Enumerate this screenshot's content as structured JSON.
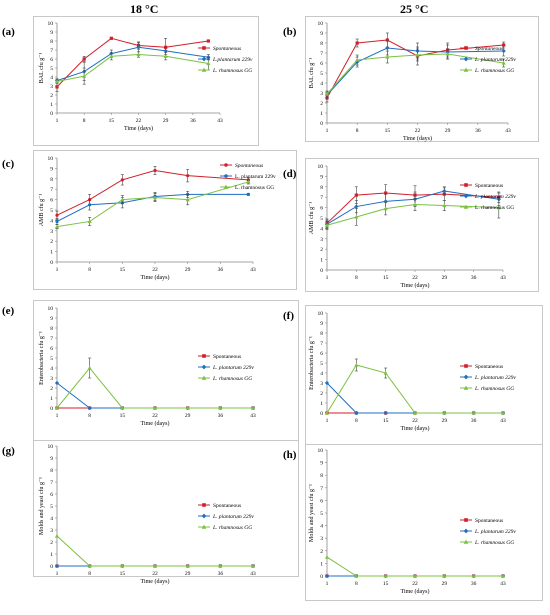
{
  "headers": {
    "left": "18 °C",
    "right": "25 °C"
  },
  "colors": {
    "spontaneous": "#d21f2b",
    "plantarum": "#1f6fbf",
    "rhamnosus": "#7cc142"
  },
  "chart_data": [
    {
      "id": "a",
      "letter": "(a)",
      "type": "line",
      "xlabel": "Time (days)",
      "ylabel": "BAL cfu g⁻¹",
      "x": [
        1,
        8,
        15,
        22,
        29,
        36,
        43
      ],
      "xlim": [
        1,
        43
      ],
      "ylim": [
        0,
        10
      ],
      "yticks": [
        0,
        1,
        2,
        3,
        4,
        5,
        6,
        7,
        8,
        9,
        10
      ],
      "legend": "right",
      "series": [
        {
          "name": "Spontaneous",
          "italic": true,
          "x": [
            1,
            8,
            15,
            22,
            29,
            40
          ],
          "y": [
            2.9,
            6.0,
            8.3,
            7.5,
            7.3,
            8.0
          ],
          "err": [
            0.5,
            0.3,
            0.1,
            0.4,
            1.0,
            0.1
          ],
          "marker": "square",
          "colorKey": "spontaneous"
        },
        {
          "name": "L.plantarum 229v",
          "italic": true,
          "x": [
            1,
            8,
            15,
            22,
            29,
            40
          ],
          "y": [
            3.6,
            4.6,
            6.6,
            7.3,
            6.9,
            6.2
          ],
          "err": [
            0.2,
            1.0,
            0.4,
            0.5,
            0.4,
            0.3
          ],
          "marker": "diamond",
          "colorKey": "plantarum"
        },
        {
          "name": "L. rhamnosus GG",
          "italic": true,
          "x": [
            1,
            8,
            15,
            22,
            29,
            40
          ],
          "y": [
            3.5,
            4.1,
            6.3,
            6.5,
            6.3,
            5.5
          ],
          "err": [
            0.2,
            0.9,
            0.4,
            0.3,
            0.4,
            0.7
          ],
          "marker": "triangle",
          "colorKey": "rhamnosus"
        }
      ]
    },
    {
      "id": "b",
      "letter": "(b)",
      "type": "line",
      "xlabel": "Time (days)",
      "ylabel": "BAL cfu g⁻¹",
      "x": [
        1,
        8,
        15,
        22,
        29,
        36,
        43
      ],
      "xlim": [
        1,
        43
      ],
      "ylim": [
        0,
        10
      ],
      "yticks": [
        0,
        1,
        2,
        3,
        4,
        5,
        6,
        7,
        8,
        9,
        10
      ],
      "legend": "right",
      "series": [
        {
          "name": "Spontaneous",
          "italic": true,
          "x": [
            1,
            8,
            15,
            22,
            29,
            42
          ],
          "y": [
            2.5,
            8.0,
            8.3,
            6.7,
            7.3,
            7.8
          ],
          "err": [
            0.4,
            0.4,
            0.7,
            0.9,
            0.7,
            0.3
          ],
          "marker": "square",
          "colorKey": "spontaneous"
        },
        {
          "name": "L. plantarum 229v",
          "italic": true,
          "x": [
            1,
            8,
            15,
            22,
            29,
            42
          ],
          "y": [
            2.8,
            6.1,
            7.5,
            7.2,
            7.1,
            7.2
          ],
          "err": [
            0.3,
            0.5,
            0.7,
            0.8,
            0.7,
            0.5
          ],
          "marker": "diamond",
          "colorKey": "plantarum"
        },
        {
          "name": "L. rhamnosus GG",
          "italic": true,
          "x": [
            1,
            8,
            15,
            22,
            29,
            42
          ],
          "y": [
            2.9,
            6.3,
            6.6,
            6.8,
            6.9,
            6.0
          ],
          "err": [
            0.3,
            0.5,
            0.6,
            0.6,
            0.5,
            0.4
          ],
          "marker": "triangle",
          "colorKey": "rhamnosus"
        }
      ]
    },
    {
      "id": "c",
      "letter": "(c)",
      "type": "line",
      "xlabel": "Time (days)",
      "ylabel": "AMB cfu g⁻¹",
      "x": [
        1,
        8,
        15,
        22,
        29,
        36,
        43
      ],
      "xlim": [
        1,
        43
      ],
      "ylim": [
        0,
        10
      ],
      "yticks": [
        0,
        1,
        2,
        3,
        4,
        5,
        6,
        7,
        8,
        9,
        10
      ],
      "legend": "right",
      "series": [
        {
          "name": "Spontaneous",
          "italic": true,
          "x": [
            1,
            8,
            15,
            22,
            29,
            42
          ],
          "y": [
            4.5,
            6.0,
            7.9,
            8.8,
            8.3,
            7.9
          ],
          "err": [
            0.4,
            0.5,
            0.5,
            0.4,
            0.6,
            0.2
          ],
          "marker": "circle",
          "colorKey": "spontaneous"
        },
        {
          "name": "L. plantarum 229v",
          "italic": false,
          "x": [
            1,
            8,
            15,
            22,
            29,
            42
          ],
          "y": [
            3.9,
            5.5,
            5.7,
            6.3,
            6.5,
            6.5
          ],
          "err": [
            0.3,
            0.5,
            0.5,
            0.4,
            0.3,
            0.1
          ],
          "marker": "circle",
          "colorKey": "plantarum"
        },
        {
          "name": "L. rhamnosus GG",
          "italic": false,
          "x": [
            1,
            8,
            15,
            22,
            29,
            42
          ],
          "y": [
            3.4,
            3.9,
            6.0,
            6.2,
            6.0,
            7.7
          ],
          "err": [
            0.2,
            0.4,
            0.4,
            0.4,
            0.5,
            0.2
          ],
          "marker": "triangle",
          "colorKey": "rhamnosus"
        }
      ]
    },
    {
      "id": "d",
      "letter": "(d)",
      "type": "line",
      "xlabel": "Time (days)",
      "ylabel": "AMB cfu g⁻¹",
      "x": [
        1,
        8,
        15,
        22,
        29,
        36,
        43
      ],
      "xlim": [
        1,
        43
      ],
      "ylim": [
        0,
        10
      ],
      "yticks": [
        0,
        1,
        2,
        3,
        4,
        5,
        6,
        7,
        8,
        9,
        10
      ],
      "legend": "right",
      "series": [
        {
          "name": "Spontaneous",
          "italic": false,
          "x": [
            1,
            8,
            15,
            22,
            29,
            42
          ],
          "y": [
            4.5,
            7.2,
            7.4,
            7.2,
            7.3,
            7.0
          ],
          "err": [
            0.4,
            0.8,
            0.8,
            0.9,
            0.6,
            0.5
          ],
          "marker": "square",
          "colorKey": "spontaneous"
        },
        {
          "name": "L. plantarum 229v",
          "italic": true,
          "x": [
            1,
            8,
            15,
            22,
            29,
            42
          ],
          "y": [
            4.4,
            6.1,
            6.6,
            6.8,
            7.6,
            6.8
          ],
          "err": [
            0.4,
            0.6,
            0.7,
            0.7,
            0.4,
            0.6
          ],
          "marker": "diamond",
          "colorKey": "plantarum"
        },
        {
          "name": "L. rhamnosus GG",
          "italic": false,
          "x": [
            1,
            8,
            15,
            22,
            29,
            42
          ],
          "y": [
            4.3,
            5.1,
            5.9,
            6.3,
            6.2,
            6.0
          ],
          "err": [
            0.4,
            0.8,
            0.6,
            0.6,
            0.5,
            1.0
          ],
          "marker": "triangle",
          "colorKey": "rhamnosus"
        }
      ]
    },
    {
      "id": "e",
      "letter": "(e)",
      "type": "line",
      "xlabel": "Time (days)",
      "ylabel": "Enterobacteria cfu g⁻¹",
      "x": [
        1,
        8,
        15,
        22,
        29,
        36,
        43
      ],
      "xlim": [
        1,
        43
      ],
      "ylim": [
        0,
        10
      ],
      "yticks": [
        0,
        1,
        2,
        3,
        4,
        5,
        6,
        7,
        8,
        9,
        10
      ],
      "legend": "right",
      "series": [
        {
          "name": "Spontaneous",
          "italic": false,
          "x": [
            1,
            8,
            15,
            22,
            29,
            36,
            43
          ],
          "y": [
            0,
            0,
            0,
            0,
            0,
            0,
            0
          ],
          "err": [
            0,
            0,
            0,
            0,
            0,
            0,
            0
          ],
          "marker": "square",
          "colorKey": "spontaneous"
        },
        {
          "name": "L. plantarum 229v",
          "italic": true,
          "x": [
            1,
            8,
            15,
            22,
            29,
            36,
            43
          ],
          "y": [
            2.5,
            0,
            0,
            0,
            0,
            0,
            0
          ],
          "err": [
            0,
            0,
            0,
            0,
            0,
            0,
            0
          ],
          "marker": "diamond",
          "colorKey": "plantarum"
        },
        {
          "name": "L. rhamnosus GG",
          "italic": true,
          "x": [
            1,
            8,
            15,
            22,
            29,
            36,
            43
          ],
          "y": [
            0,
            4.0,
            0,
            0,
            0,
            0,
            0
          ],
          "err": [
            0,
            1.0,
            0,
            0,
            0,
            0,
            0
          ],
          "marker": "triangle",
          "colorKey": "rhamnosus"
        }
      ]
    },
    {
      "id": "f",
      "letter": "(f)",
      "type": "line",
      "xlabel": "Time (days)",
      "ylabel": "Enterobacteria cfu g⁻¹",
      "x": [
        1,
        8,
        15,
        22,
        29,
        36,
        43
      ],
      "xlim": [
        1,
        43
      ],
      "ylim": [
        0,
        10
      ],
      "yticks": [
        0,
        1,
        2,
        3,
        4,
        5,
        6,
        7,
        8,
        9,
        10
      ],
      "legend": "right",
      "series": [
        {
          "name": "Spontaneous",
          "italic": false,
          "x": [
            1,
            8,
            15,
            22,
            29,
            36,
            43
          ],
          "y": [
            0,
            0,
            0,
            0,
            0,
            0,
            0
          ],
          "err": [
            0,
            0,
            0,
            0,
            0,
            0,
            0
          ],
          "marker": "square",
          "colorKey": "spontaneous"
        },
        {
          "name": "L. plantarum 229v",
          "italic": true,
          "x": [
            1,
            8,
            15,
            22,
            29,
            36,
            43
          ],
          "y": [
            3.0,
            0,
            0,
            0,
            0,
            0,
            0
          ],
          "err": [
            0,
            0,
            0,
            0,
            0,
            0,
            0
          ],
          "marker": "diamond",
          "colorKey": "plantarum"
        },
        {
          "name": "L. rhamnosus GG",
          "italic": true,
          "x": [
            1,
            8,
            15,
            22,
            29,
            36,
            43
          ],
          "y": [
            0,
            4.8,
            4.0,
            0,
            0,
            0,
            0
          ],
          "err": [
            0,
            0.6,
            0.5,
            0,
            0,
            0,
            0
          ],
          "marker": "triangle",
          "colorKey": "rhamnosus"
        }
      ]
    },
    {
      "id": "g",
      "letter": "(g)",
      "type": "line",
      "xlabel": "Time (days)",
      "ylabel": "Molds and yeast cfu g⁻¹",
      "x": [
        1,
        8,
        15,
        22,
        29,
        36,
        43
      ],
      "xlim": [
        1,
        43
      ],
      "ylim": [
        0,
        10
      ],
      "yticks": [
        0,
        1,
        2,
        3,
        4,
        5,
        6,
        7,
        8,
        9,
        10
      ],
      "legend": "right",
      "series": [
        {
          "name": "Spontaneous",
          "italic": false,
          "x": [
            1,
            8,
            15,
            22,
            29,
            36,
            43
          ],
          "y": [
            0,
            0,
            0,
            0,
            0,
            0,
            0
          ],
          "err": [
            0,
            0,
            0,
            0,
            0,
            0,
            0
          ],
          "marker": "square",
          "colorKey": "spontaneous"
        },
        {
          "name": "L. plantarum 229v",
          "italic": true,
          "x": [
            1,
            8,
            15,
            22,
            29,
            36,
            43
          ],
          "y": [
            0,
            0,
            0,
            0,
            0,
            0,
            0
          ],
          "err": [
            0,
            0,
            0,
            0,
            0,
            0,
            0
          ],
          "marker": "diamond",
          "colorKey": "plantarum"
        },
        {
          "name": "L. rhamnosus GG",
          "italic": true,
          "x": [
            1,
            8,
            15,
            22,
            29,
            36,
            43
          ],
          "y": [
            2.5,
            0,
            0,
            0,
            0,
            0,
            0
          ],
          "err": [
            0,
            0,
            0,
            0,
            0,
            0,
            0
          ],
          "marker": "triangle",
          "colorKey": "rhamnosus"
        }
      ]
    },
    {
      "id": "h",
      "letter": "(h)",
      "type": "line",
      "xlabel": "Time (days)",
      "ylabel": "Molds and yeast cfu g⁻¹",
      "x": [
        1,
        8,
        15,
        22,
        29,
        36,
        43
      ],
      "xlim": [
        1,
        43
      ],
      "ylim": [
        0,
        10
      ],
      "yticks": [
        0,
        1,
        2,
        3,
        4,
        5,
        6,
        7,
        8,
        9,
        10
      ],
      "legend": "right",
      "series": [
        {
          "name": "Spontaneous",
          "italic": false,
          "x": [
            1,
            8,
            15,
            22,
            29,
            36,
            43
          ],
          "y": [
            0,
            0,
            0,
            0,
            0,
            0,
            0
          ],
          "err": [
            0,
            0,
            0,
            0,
            0,
            0,
            0
          ],
          "marker": "square",
          "colorKey": "spontaneous"
        },
        {
          "name": "L. plantarum 229v",
          "italic": true,
          "x": [
            1,
            8,
            15,
            22,
            29,
            36,
            43
          ],
          "y": [
            0,
            0,
            0,
            0,
            0,
            0,
            0
          ],
          "err": [
            0,
            0,
            0,
            0,
            0,
            0,
            0
          ],
          "marker": "diamond",
          "colorKey": "plantarum"
        },
        {
          "name": "L. rhamnosus GG",
          "italic": true,
          "x": [
            1,
            8,
            15,
            22,
            29,
            36,
            43
          ],
          "y": [
            1.5,
            0,
            0,
            0,
            0,
            0,
            0
          ],
          "err": [
            0,
            0,
            0,
            0,
            0,
            0,
            0
          ],
          "marker": "triangle",
          "colorKey": "rhamnosus"
        }
      ]
    }
  ]
}
